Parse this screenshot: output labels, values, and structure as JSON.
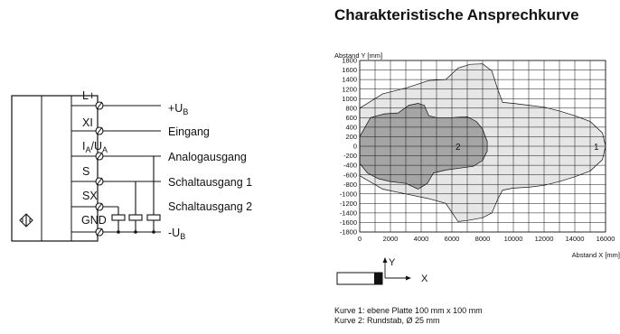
{
  "wiring": {
    "pins": [
      {
        "pin": "L+",
        "signal": "+U",
        "signal_sub": "B"
      },
      {
        "pin": "XI",
        "signal": "Eingang"
      },
      {
        "pin": "I",
        "pin_sub": "A",
        "pin_mid": "/U",
        "pin_sub2": "A",
        "signal": "Analogausgang"
      },
      {
        "pin": "S",
        "signal": "Schaltausgang 1"
      },
      {
        "pin": "SX",
        "signal": "Schaltausgang 2"
      },
      {
        "pin": "GND",
        "signal": "-U",
        "signal_sub": "B"
      }
    ]
  },
  "chart_data": {
    "type": "area",
    "title": "Charakteristische Ansprechkurve",
    "ylabel": "Abstand Y [mm]",
    "xlabel": "Abstand X [mm]",
    "xlim": [
      0,
      16000
    ],
    "ylim": [
      -1800,
      1800
    ],
    "x_ticks": [
      0,
      2000,
      4000,
      6000,
      8000,
      10000,
      12000,
      14000,
      16000
    ],
    "y_ticks": [
      1800,
      1600,
      1400,
      1200,
      1000,
      800,
      600,
      400,
      200,
      0,
      -200,
      -400,
      -600,
      -800,
      -1000,
      -1200,
      -1400,
      -1600,
      -1800
    ],
    "grid": true,
    "series": [
      {
        "name": "1",
        "label_at": [
          15400,
          0
        ],
        "fill": "#e6e6e6",
        "points": [
          [
            0,
            800
          ],
          [
            1500,
            1100
          ],
          [
            3000,
            1220
          ],
          [
            4500,
            1380
          ],
          [
            5600,
            1400
          ],
          [
            6400,
            1640
          ],
          [
            7200,
            1720
          ],
          [
            8000,
            1730
          ],
          [
            8600,
            1580
          ],
          [
            9000,
            1180
          ],
          [
            9300,
            920
          ],
          [
            10000,
            900
          ],
          [
            11000,
            860
          ],
          [
            12000,
            820
          ],
          [
            13000,
            740
          ],
          [
            14000,
            640
          ],
          [
            15000,
            520
          ],
          [
            15800,
            280
          ],
          [
            16000,
            0
          ],
          [
            15800,
            -280
          ],
          [
            15000,
            -520
          ],
          [
            14000,
            -640
          ],
          [
            13000,
            -740
          ],
          [
            12000,
            -820
          ],
          [
            11000,
            -860
          ],
          [
            10000,
            -880
          ],
          [
            9300,
            -920
          ],
          [
            9000,
            -1100
          ],
          [
            8600,
            -1400
          ],
          [
            8000,
            -1500
          ],
          [
            7000,
            -1560
          ],
          [
            6400,
            -1580
          ],
          [
            5600,
            -1200
          ],
          [
            4500,
            -1100
          ],
          [
            3000,
            -1000
          ],
          [
            1500,
            -900
          ],
          [
            0,
            -620
          ]
        ]
      },
      {
        "name": "2",
        "label_at": [
          6400,
          0
        ],
        "fill": "#a5a5a5",
        "points": [
          [
            0,
            200
          ],
          [
            700,
            600
          ],
          [
            1600,
            680
          ],
          [
            2500,
            700
          ],
          [
            3200,
            860
          ],
          [
            3800,
            900
          ],
          [
            4200,
            860
          ],
          [
            4500,
            640
          ],
          [
            5000,
            600
          ],
          [
            6000,
            600
          ],
          [
            7000,
            620
          ],
          [
            7600,
            520
          ],
          [
            8000,
            360
          ],
          [
            8300,
            100
          ],
          [
            8300,
            -100
          ],
          [
            8000,
            -300
          ],
          [
            7400,
            -420
          ],
          [
            6500,
            -460
          ],
          [
            5600,
            -500
          ],
          [
            4800,
            -560
          ],
          [
            4400,
            -780
          ],
          [
            3800,
            -900
          ],
          [
            3000,
            -780
          ],
          [
            2000,
            -740
          ],
          [
            1200,
            -680
          ],
          [
            500,
            -560
          ],
          [
            0,
            -360
          ]
        ]
      }
    ]
  },
  "axes_icon": {
    "y": "Y",
    "x": "X"
  },
  "legend": {
    "line1": "Kurve 1: ebene Platte 100 mm x 100 mm",
    "line2": "Kurve 2: Rundstab, Ø 25 mm"
  }
}
